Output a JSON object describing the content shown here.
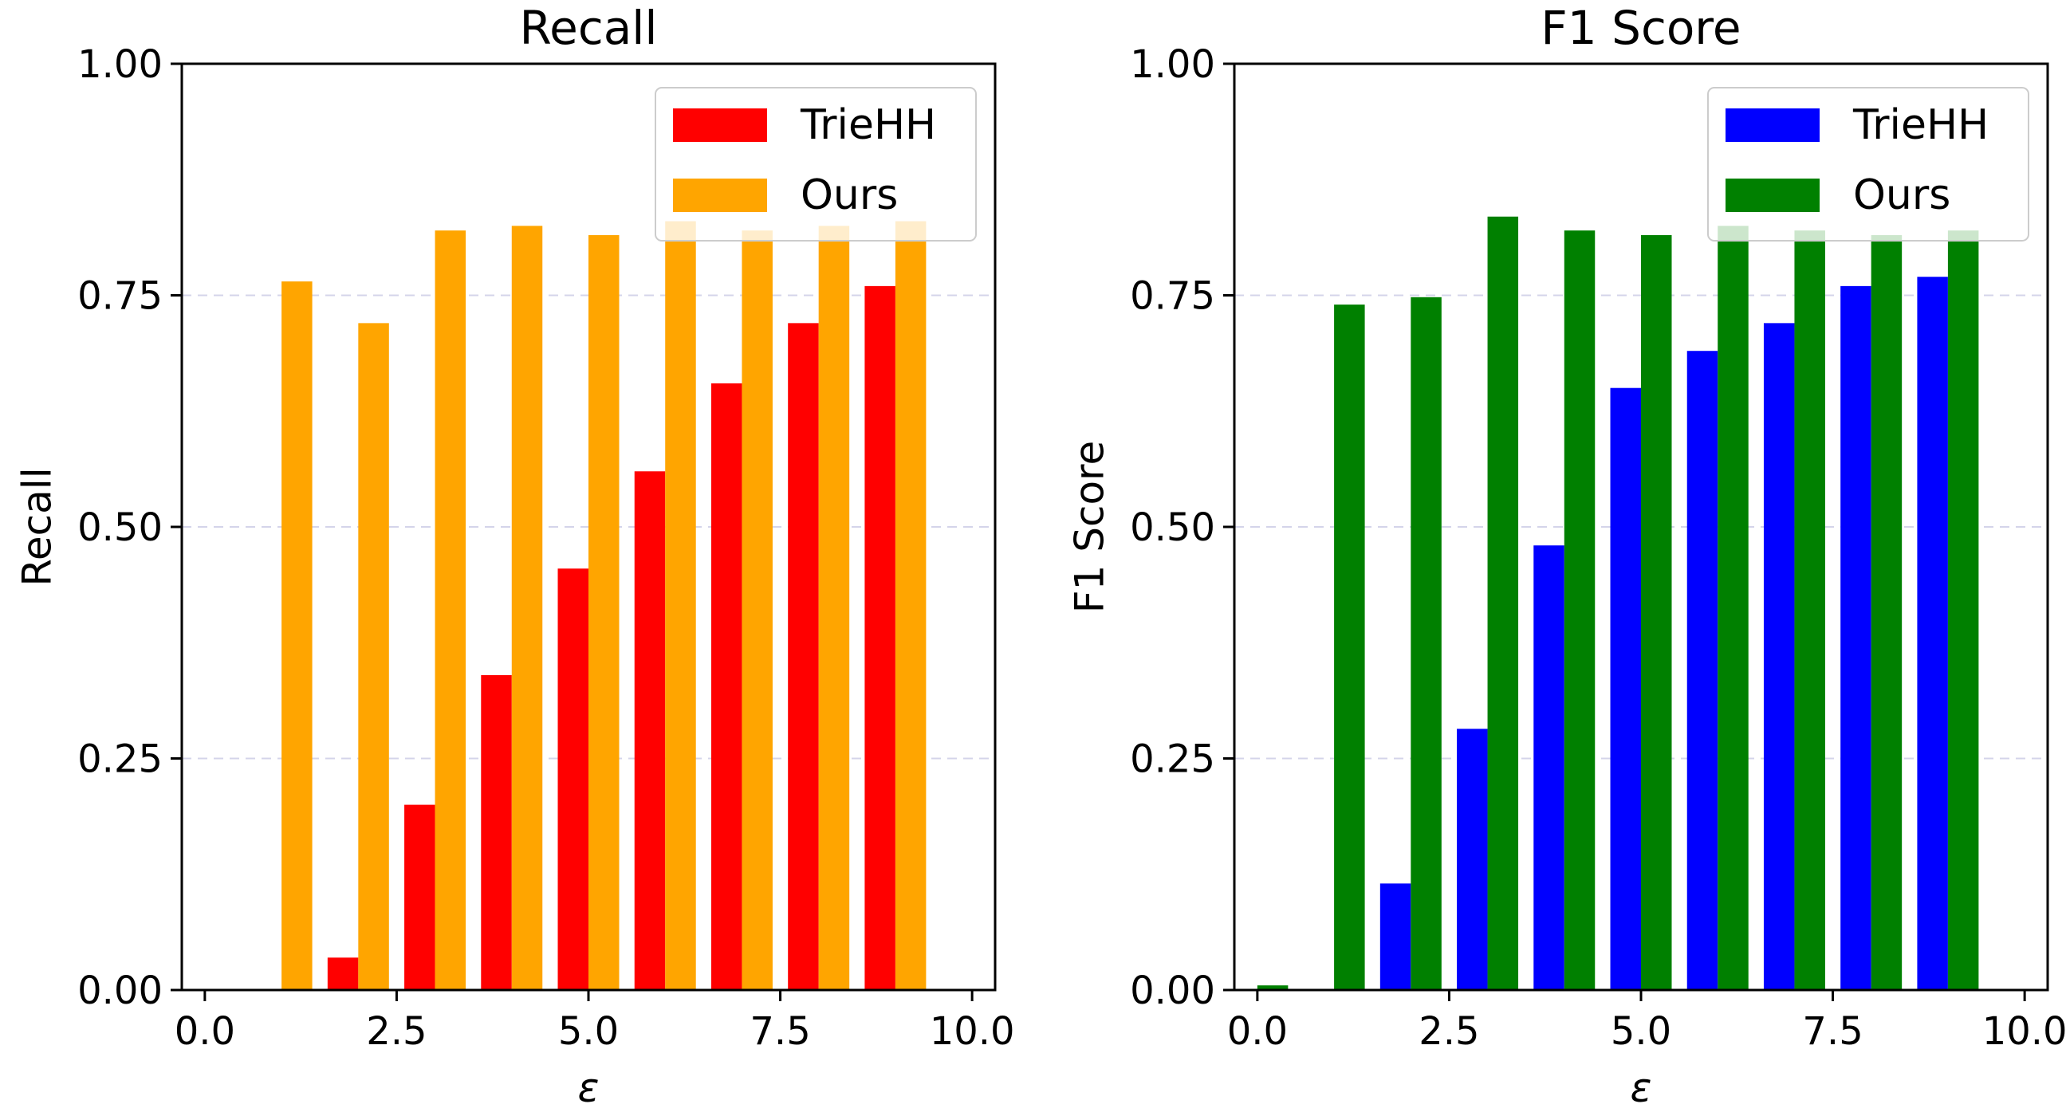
{
  "chart_data": [
    {
      "type": "bar",
      "title": "Recall",
      "xlabel": "ε",
      "ylabel": "Recall",
      "xlim": [
        -0.3,
        10.3
      ],
      "ylim": [
        0,
        1
      ],
      "xticks": [
        "0.0",
        "2.5",
        "5.0",
        "7.5",
        "10.0"
      ],
      "yticks": [
        "0.00",
        "0.25",
        "0.50",
        "0.75",
        "1.00"
      ],
      "grid": "y-dashed",
      "legend": "top-right",
      "categories": [
        1,
        2,
        3,
        4,
        5,
        6,
        7,
        8,
        9,
        10
      ],
      "series": [
        {
          "name": "TrieHH",
          "color": "#ff0000",
          "values": [
            0,
            0.035,
            0.2,
            0.34,
            0.455,
            0.56,
            0.655,
            0.72,
            0.76,
            0.0
          ]
        },
        {
          "name": "Ours",
          "color": "#ffa500",
          "values": [
            0.765,
            0.72,
            0.82,
            0.825,
            0.815,
            0.83,
            0.82,
            0.825,
            0.83,
            0.0
          ]
        }
      ]
    },
    {
      "type": "bar",
      "title": "F1 Score",
      "xlabel": "ε",
      "ylabel": "F1 Score",
      "xlim": [
        -0.3,
        10.3
      ],
      "ylim": [
        0,
        1
      ],
      "xticks": [
        "0.0",
        "2.5",
        "5.0",
        "7.5",
        "10.0"
      ],
      "yticks": [
        "0.00",
        "0.25",
        "0.50",
        "0.75",
        "1.00"
      ],
      "grid": "y-dashed",
      "legend": "top-right",
      "categories": [
        0,
        1,
        2,
        3,
        4,
        5,
        6,
        7,
        8,
        9
      ],
      "series": [
        {
          "name": "TrieHH",
          "color": "#0000ff",
          "values": [
            0,
            0,
            0.115,
            0.282,
            0.48,
            0.65,
            0.69,
            0.72,
            0.76,
            0.77
          ]
        },
        {
          "name": "Ours",
          "color": "#008000",
          "values": [
            0.005,
            0.74,
            0.748,
            0.835,
            0.82,
            0.815,
            0.825,
            0.82,
            0.815,
            0.82
          ]
        }
      ]
    }
  ]
}
